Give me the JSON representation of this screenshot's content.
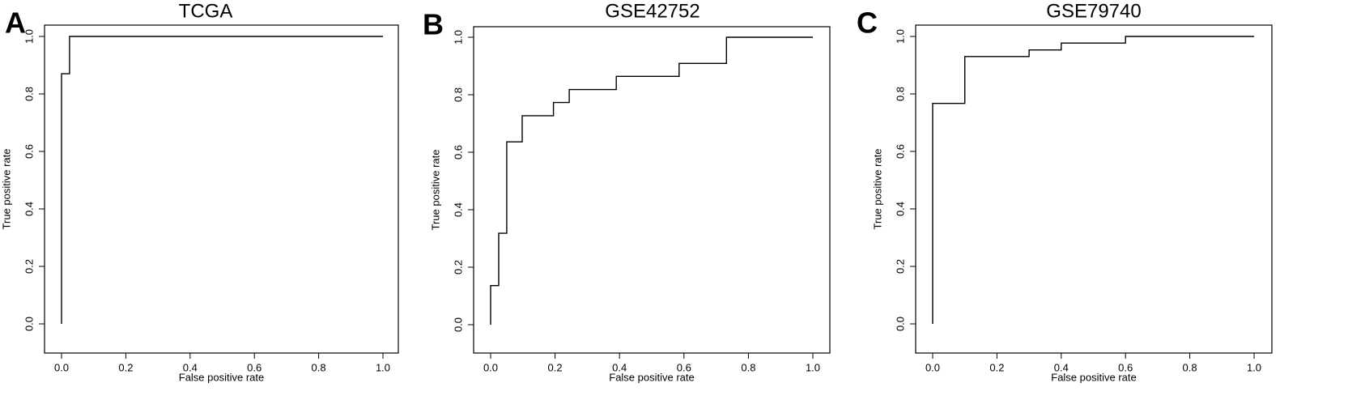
{
  "chart_data": [
    {
      "panel": "A",
      "type": "line",
      "title": "TCGA",
      "xlabel": "False positive rate",
      "ylabel": "True positive rate",
      "xlim": [
        0,
        1
      ],
      "ylim": [
        0,
        1
      ],
      "xticks": [
        "0.0",
        "0.2",
        "0.4",
        "0.6",
        "0.8",
        "1.0"
      ],
      "yticks": [
        "0.0",
        "0.2",
        "0.4",
        "0.6",
        "0.8",
        "1.0"
      ],
      "grid": false,
      "series": [
        {
          "x": [
            0,
            0,
            0.025,
            0.025,
            1
          ],
          "y": [
            0,
            0.87,
            0.87,
            1,
            1
          ]
        }
      ]
    },
    {
      "panel": "B",
      "type": "line",
      "title": "GSE42752",
      "xlabel": "False positive rate",
      "ylabel": "True positive rate",
      "xlim": [
        0,
        1
      ],
      "ylim": [
        0,
        1
      ],
      "xticks": [
        "0.0",
        "0.2",
        "0.4",
        "0.6",
        "0.8",
        "1.0"
      ],
      "yticks": [
        "0.0",
        "0.2",
        "0.4",
        "0.6",
        "0.8",
        "1.0"
      ],
      "grid": false,
      "series": [
        {
          "x": [
            0,
            0,
            0.025,
            0.025,
            0.05,
            0.05,
            0.098,
            0.098,
            0.195,
            0.195,
            0.244,
            0.244,
            0.39,
            0.39,
            0.585,
            0.585,
            0.732,
            0.732,
            1
          ],
          "y": [
            0,
            0.136,
            0.136,
            0.318,
            0.318,
            0.636,
            0.636,
            0.727,
            0.727,
            0.773,
            0.773,
            0.818,
            0.818,
            0.864,
            0.864,
            0.909,
            0.909,
            1,
            1
          ]
        }
      ]
    },
    {
      "panel": "C",
      "type": "line",
      "title": "GSE79740",
      "xlabel": "False positive rate",
      "ylabel": "True positive rate",
      "xlim": [
        0,
        1
      ],
      "ylim": [
        0,
        1
      ],
      "xticks": [
        "0.0",
        "0.2",
        "0.4",
        "0.6",
        "0.8",
        "1.0"
      ],
      "yticks": [
        "0.0",
        "0.2",
        "0.4",
        "0.6",
        "0.8",
        "1.0"
      ],
      "grid": false,
      "series": [
        {
          "x": [
            0,
            0,
            0.1,
            0.1,
            0.3,
            0.3,
            0.4,
            0.4,
            0.6,
            0.6,
            1
          ],
          "y": [
            0,
            0.767,
            0.767,
            0.93,
            0.93,
            0.953,
            0.953,
            0.977,
            0.977,
            1,
            1
          ]
        }
      ]
    }
  ]
}
